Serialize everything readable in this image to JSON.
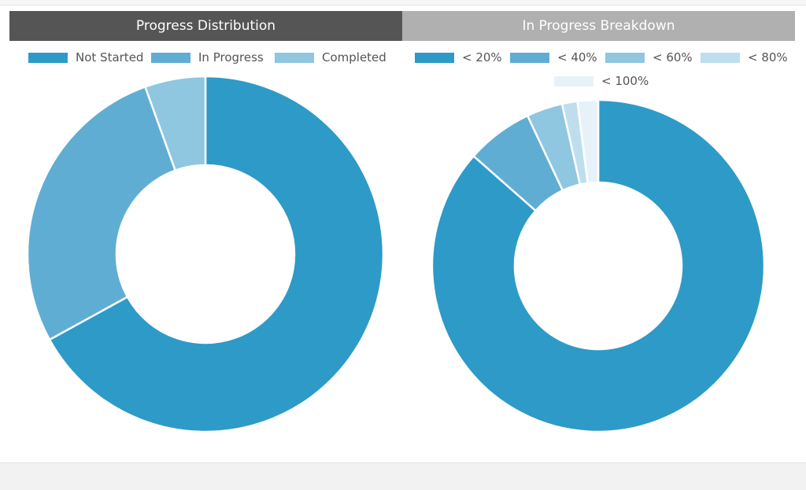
{
  "colors": {
    "header_active": "#555555",
    "header_inactive": "#b0b0b0",
    "slice_stroke": "#ffffff"
  },
  "tabs": [
    {
      "label": "Progress Distribution"
    },
    {
      "label": "In Progress Breakdown"
    }
  ],
  "chart_data": [
    {
      "type": "pie",
      "subtype": "donut",
      "title": "Progress Distribution",
      "legend_position": "top",
      "categories": [
        "Not Started",
        "In Progress",
        "Completed"
      ],
      "values": [
        67,
        27.5,
        5.5
      ],
      "unit": "%",
      "colors": [
        "#2e9ac7",
        "#60add4",
        "#8fc6e0"
      ]
    },
    {
      "type": "pie",
      "subtype": "donut",
      "title": "In Progress Breakdown",
      "legend_position": "top",
      "categories": [
        "< 20%",
        "< 40%",
        "< 60%",
        "< 80%",
        "< 100%"
      ],
      "values": [
        86.5,
        6.5,
        3.5,
        1.5,
        2.0
      ],
      "unit": "%",
      "colors": [
        "#2e9ac7",
        "#60add4",
        "#8fc6e0",
        "#bfdeed",
        "#e6f2f8"
      ]
    }
  ]
}
